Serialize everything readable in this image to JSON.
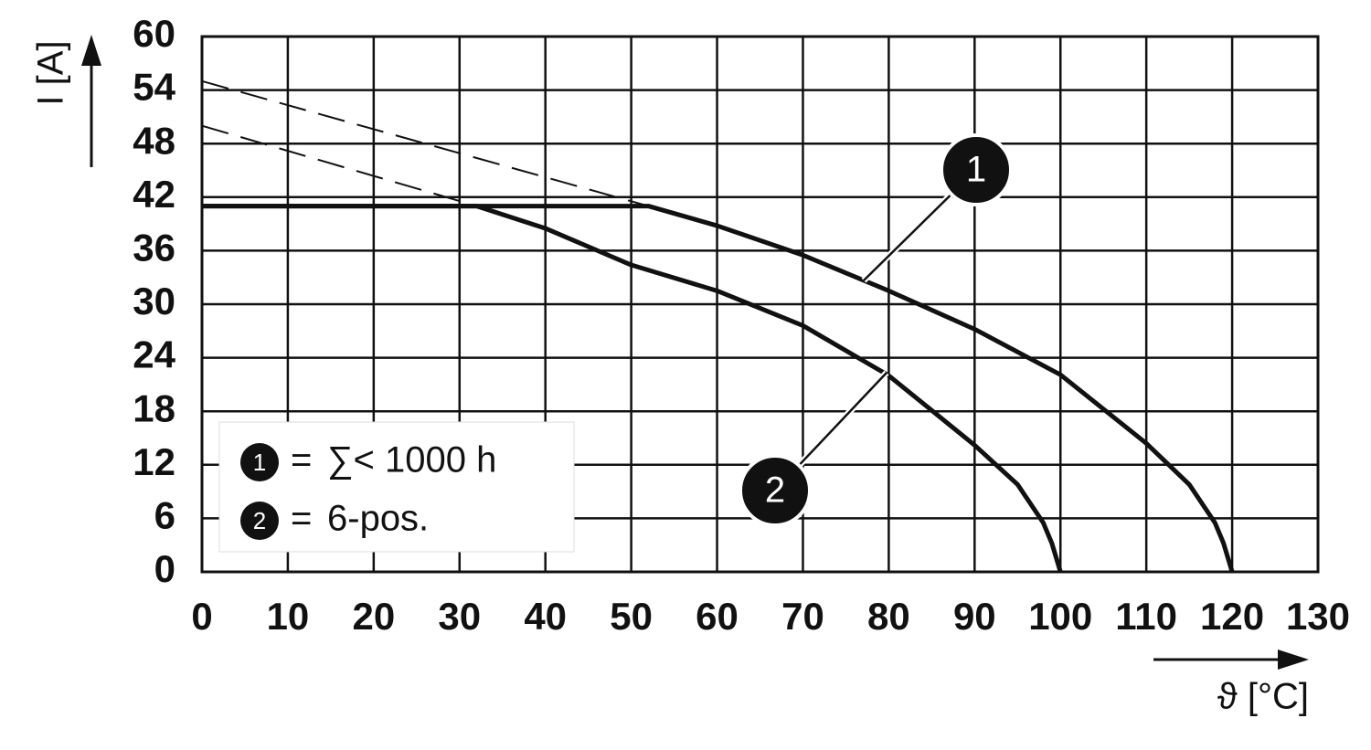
{
  "chart_data": {
    "type": "line",
    "y_label": "I [A]",
    "x_label": "ϑ [°C]",
    "xlim": [
      0,
      130
    ],
    "ylim": [
      0,
      60
    ],
    "xticks": [
      0,
      10,
      20,
      30,
      40,
      50,
      60,
      70,
      80,
      90,
      100,
      110,
      120,
      130
    ],
    "yticks": [
      0,
      6,
      12,
      18,
      24,
      30,
      36,
      42,
      48,
      54,
      60
    ],
    "grid": true,
    "legend_separator": "=",
    "series": [
      {
        "name": "∑< 1000 h",
        "marker": "1",
        "color": "#111111",
        "style": "solid",
        "x": [
          0,
          52,
          60,
          70,
          80,
          90,
          100,
          110,
          115,
          118,
          119,
          120
        ],
        "values": [
          41,
          41,
          38.8,
          35.5,
          31.5,
          27.2,
          22.1,
          14.4,
          9.8,
          5.5,
          3.2,
          0
        ]
      },
      {
        "name": "6-pos.",
        "marker": "2",
        "color": "#111111",
        "style": "solid",
        "x": [
          0,
          32,
          40,
          50,
          60,
          70,
          80,
          90,
          95,
          98,
          99,
          100
        ],
        "values": [
          41,
          41,
          38.5,
          34.4,
          31.5,
          27.6,
          22,
          14.2,
          9.8,
          5.5,
          3.2,
          0
        ]
      },
      {
        "color": "#111111",
        "style": "dashed",
        "x": [
          0,
          52
        ],
        "values": [
          55,
          41
        ]
      },
      {
        "color": "#111111",
        "style": "dashed",
        "x": [
          0,
          32
        ],
        "values": [
          50,
          41
        ]
      }
    ]
  }
}
